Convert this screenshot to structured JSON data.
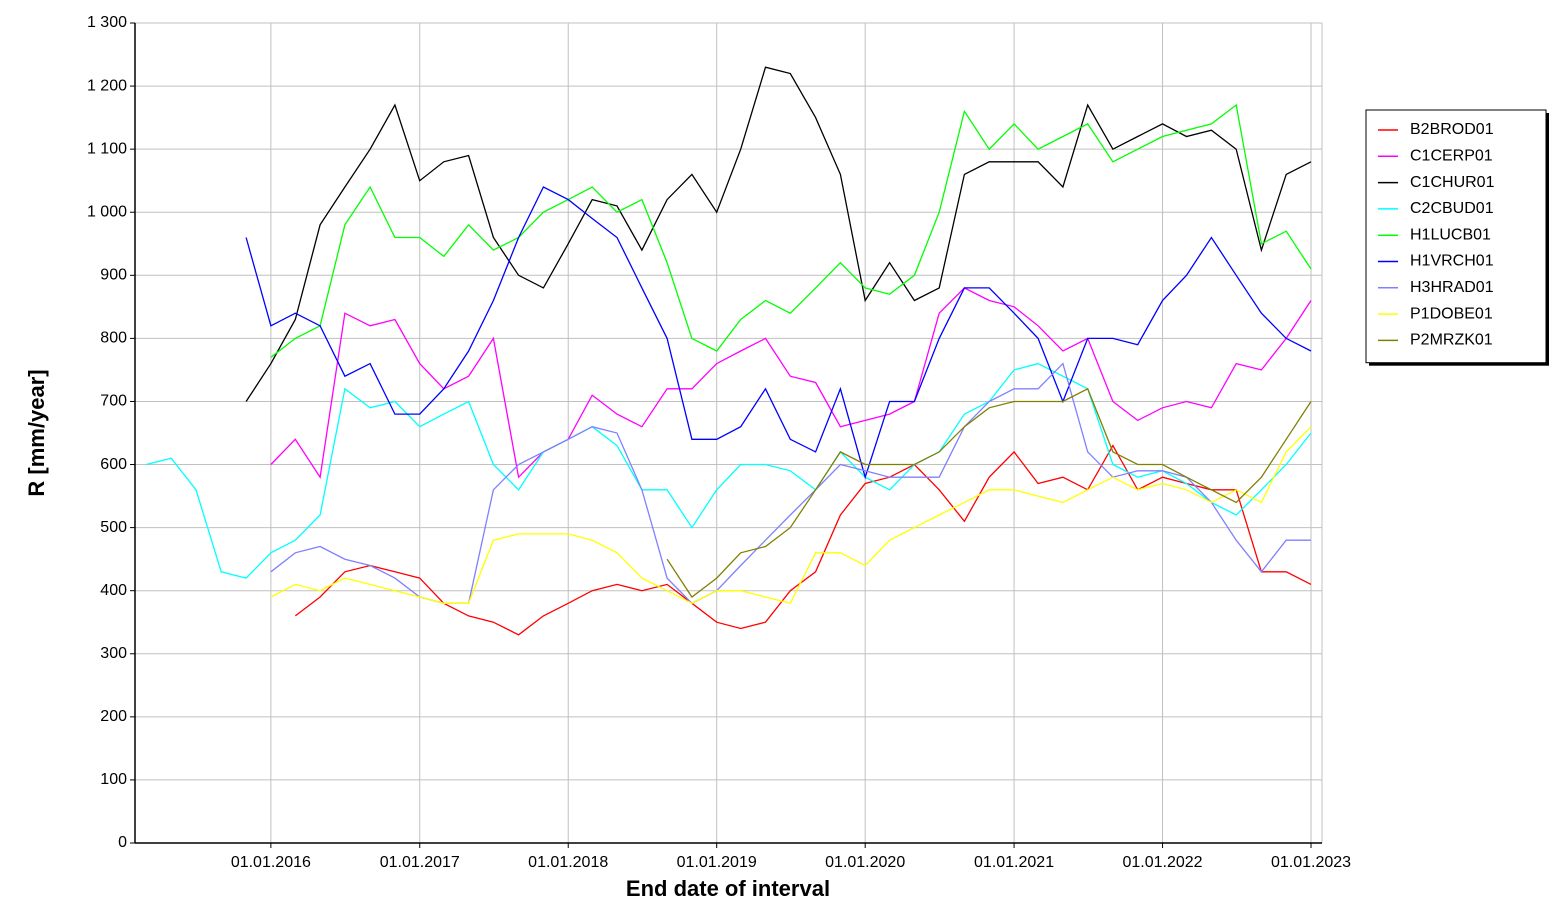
{
  "chart_data": {
    "type": "line",
    "x_label": "End date of interval",
    "y_label": "R [mm/year]",
    "x": [
      "2015-03-01",
      "2015-05-01",
      "2015-07-01",
      "2015-09-01",
      "2015-11-01",
      "2016-01-01",
      "2016-03-01",
      "2016-05-01",
      "2016-07-01",
      "2016-09-01",
      "2016-11-01",
      "2017-01-01",
      "2017-03-01",
      "2017-05-01",
      "2017-07-01",
      "2017-09-01",
      "2017-11-01",
      "2018-01-01",
      "2018-03-01",
      "2018-05-01",
      "2018-07-01",
      "2018-09-01",
      "2018-11-01",
      "2019-01-01",
      "2019-03-01",
      "2019-05-01",
      "2019-07-01",
      "2019-09-01",
      "2019-11-01",
      "2020-01-01",
      "2020-03-01",
      "2020-05-01",
      "2020-07-01",
      "2020-09-01",
      "2020-11-01",
      "2021-01-01",
      "2021-03-01",
      "2021-05-01",
      "2021-07-01",
      "2021-09-01",
      "2021-11-01",
      "2022-01-01",
      "2022-03-01",
      "2022-05-01",
      "2022-07-01",
      "2022-09-01",
      "2022-11-01",
      "2023-01-01"
    ],
    "xlim": [
      "2015-02-01",
      "2023-01-28"
    ],
    "xticks": [
      {
        "value": "2016-01-01",
        "label": "01.01.2016"
      },
      {
        "value": "2017-01-01",
        "label": "01.01.2017"
      },
      {
        "value": "2018-01-01",
        "label": "01.01.2018"
      },
      {
        "value": "2019-01-01",
        "label": "01.01.2019"
      },
      {
        "value": "2020-01-01",
        "label": "01.01.2020"
      },
      {
        "value": "2021-01-01",
        "label": "01.01.2021"
      },
      {
        "value": "2022-01-01",
        "label": "01.01.2022"
      },
      {
        "value": "2023-01-01",
        "label": "01.01.2023"
      }
    ],
    "ylim": [
      0,
      1300
    ],
    "yticks": [
      0,
      100,
      200,
      300,
      400,
      500,
      600,
      700,
      800,
      900,
      {
        "value": 1000,
        "label": "1 000"
      },
      {
        "value": 1100,
        "label": "1 100"
      },
      {
        "value": 1200,
        "label": "1 200"
      },
      {
        "value": 1300,
        "label": "1 300"
      }
    ],
    "grid": true,
    "legend": "right",
    "series": [
      {
        "name": "B2BROD01",
        "color": "#ff0000",
        "values": [
          null,
          null,
          null,
          null,
          null,
          null,
          360,
          390,
          430,
          440,
          430,
          420,
          380,
          360,
          350,
          330,
          360,
          380,
          400,
          410,
          400,
          410,
          380,
          350,
          340,
          350,
          400,
          430,
          520,
          570,
          580,
          600,
          560,
          510,
          580,
          620,
          570,
          580,
          560,
          630,
          560,
          580,
          570,
          560,
          560,
          430,
          430,
          410
        ]
      },
      {
        "name": "C1CERP01",
        "color": "#ff00ff",
        "values": [
          null,
          null,
          null,
          null,
          null,
          600,
          640,
          580,
          840,
          820,
          830,
          760,
          720,
          740,
          800,
          580,
          620,
          640,
          710,
          680,
          660,
          720,
          720,
          760,
          780,
          800,
          740,
          730,
          660,
          670,
          680,
          700,
          840,
          880,
          860,
          850,
          820,
          780,
          800,
          700,
          670,
          690,
          700,
          690,
          760,
          750,
          800,
          860
        ]
      },
      {
        "name": "C1CHUR01",
        "color": "#000000",
        "values": [
          null,
          null,
          null,
          null,
          700,
          760,
          830,
          980,
          1040,
          1100,
          1170,
          1050,
          1080,
          1090,
          960,
          900,
          880,
          950,
          1020,
          1010,
          940,
          1020,
          1060,
          1000,
          1100,
          1230,
          1220,
          1150,
          1060,
          860,
          920,
          860,
          880,
          1060,
          1080,
          1080,
          1080,
          1040,
          1170,
          1100,
          1120,
          1140,
          1120,
          1130,
          1100,
          940,
          1060,
          1080
        ]
      },
      {
        "name": "C2CBUD01",
        "color": "#00ffff",
        "values": [
          600,
          610,
          560,
          430,
          420,
          460,
          480,
          520,
          720,
          690,
          700,
          660,
          680,
          700,
          600,
          560,
          620,
          640,
          660,
          630,
          560,
          560,
          500,
          560,
          600,
          600,
          590,
          560,
          620,
          580,
          560,
          600,
          620,
          680,
          700,
          750,
          760,
          740,
          720,
          600,
          580,
          590,
          570,
          540,
          520,
          560,
          600,
          650
        ]
      },
      {
        "name": "H1LUCB01",
        "color": "#00ff00",
        "values": [
          null,
          null,
          null,
          null,
          null,
          770,
          800,
          820,
          980,
          1040,
          960,
          960,
          930,
          980,
          940,
          960,
          1000,
          1020,
          1040,
          1000,
          1020,
          920,
          800,
          780,
          830,
          860,
          840,
          880,
          920,
          880,
          870,
          900,
          1000,
          1160,
          1100,
          1140,
          1100,
          1120,
          1140,
          1080,
          1100,
          1120,
          1130,
          1140,
          1170,
          950,
          970,
          910
        ]
      },
      {
        "name": "H1VRCH01",
        "color": "#0000ff",
        "values": [
          null,
          null,
          null,
          null,
          960,
          820,
          840,
          820,
          740,
          760,
          680,
          680,
          720,
          780,
          860,
          960,
          1040,
          1020,
          990,
          960,
          880,
          800,
          640,
          640,
          660,
          720,
          640,
          620,
          720,
          580,
          700,
          700,
          800,
          880,
          880,
          840,
          800,
          700,
          800,
          800,
          790,
          860,
          900,
          960,
          900,
          840,
          800,
          780
        ]
      },
      {
        "name": "H3HRAD01",
        "color": "#8080ff",
        "values": [
          null,
          null,
          null,
          null,
          null,
          430,
          460,
          470,
          450,
          440,
          420,
          390,
          380,
          380,
          560,
          600,
          620,
          640,
          660,
          650,
          560,
          420,
          380,
          400,
          440,
          480,
          520,
          560,
          600,
          590,
          580,
          580,
          580,
          660,
          700,
          720,
          720,
          760,
          620,
          580,
          590,
          590,
          580,
          540,
          480,
          430,
          480,
          480
        ]
      },
      {
        "name": "P1DOBE01",
        "color": "#ffff00",
        "values": [
          null,
          null,
          null,
          null,
          null,
          390,
          410,
          400,
          420,
          410,
          400,
          390,
          380,
          380,
          480,
          490,
          490,
          490,
          480,
          460,
          420,
          400,
          380,
          400,
          400,
          390,
          380,
          460,
          460,
          440,
          480,
          500,
          520,
          540,
          560,
          560,
          550,
          540,
          560,
          580,
          560,
          570,
          560,
          540,
          560,
          540,
          620,
          660
        ]
      },
      {
        "name": "P2MRZK01",
        "color": "#808000",
        "values": [
          null,
          null,
          null,
          null,
          null,
          null,
          null,
          null,
          null,
          null,
          null,
          null,
          null,
          null,
          null,
          null,
          null,
          null,
          null,
          null,
          null,
          450,
          390,
          420,
          460,
          470,
          500,
          560,
          620,
          600,
          600,
          600,
          620,
          660,
          690,
          700,
          700,
          700,
          720,
          620,
          600,
          600,
          580,
          560,
          540,
          580,
          640,
          700
        ]
      }
    ]
  }
}
